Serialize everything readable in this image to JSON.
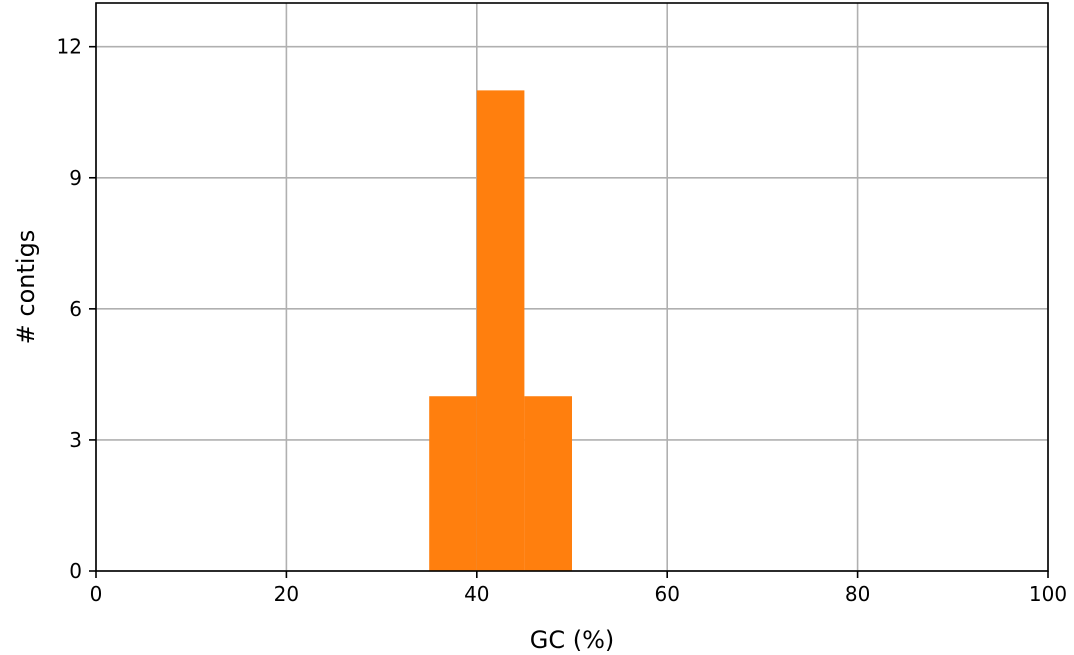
{
  "chart_data": {
    "type": "bar",
    "xlabel": "GC (%)",
    "ylabel": "# contigs",
    "xlim": [
      0,
      100
    ],
    "ylim": [
      0,
      13
    ],
    "xticks": [
      "0",
      "20",
      "40",
      "60",
      "80",
      "100"
    ],
    "yticks": [
      "0",
      "3",
      "6",
      "9",
      "12"
    ],
    "grid": true,
    "bar_color": "#ff7f0e",
    "bins": [
      {
        "start": 35,
        "end": 40,
        "value": 4
      },
      {
        "start": 40,
        "end": 45,
        "value": 11
      },
      {
        "start": 45,
        "end": 50,
        "value": 4
      }
    ]
  }
}
